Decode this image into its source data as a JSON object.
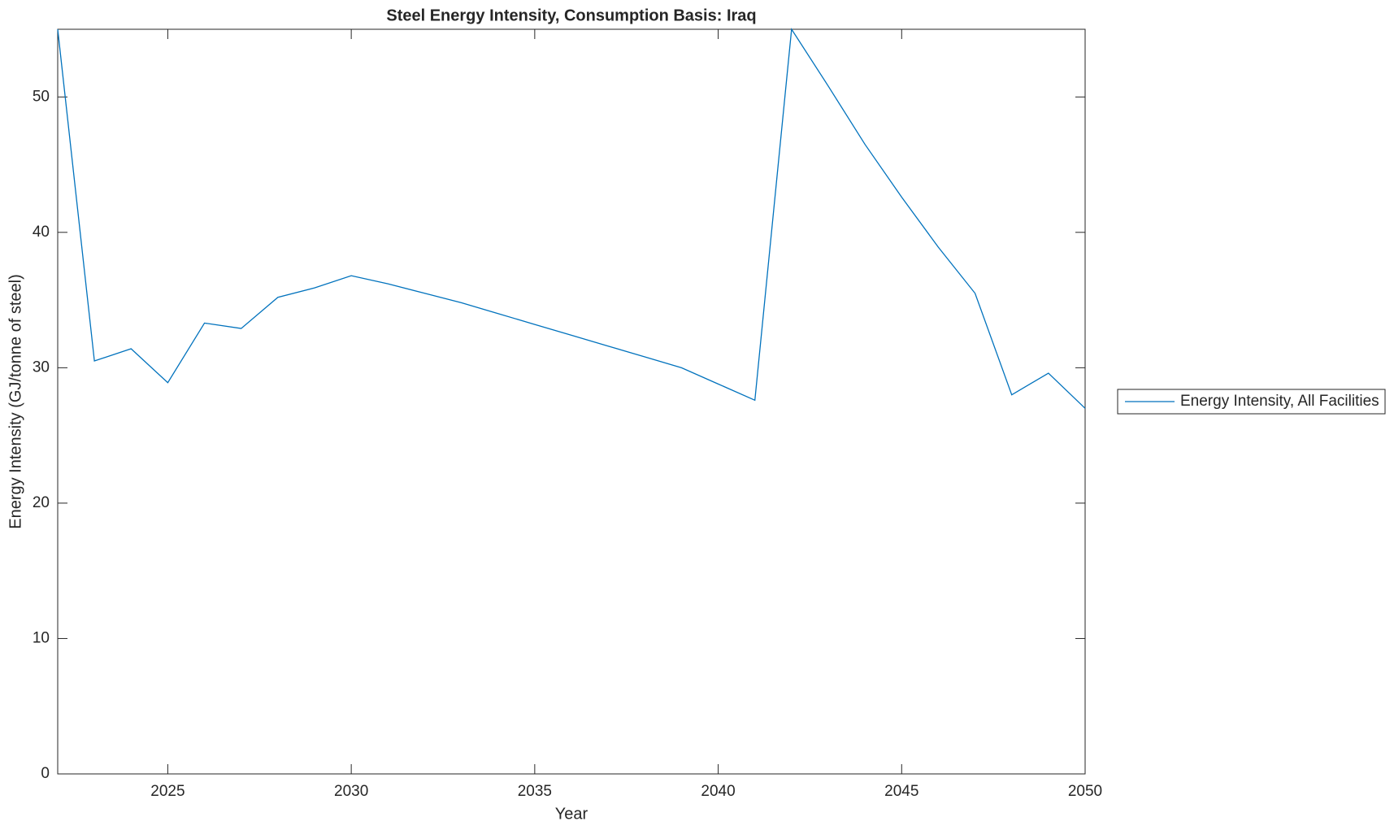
{
  "chart_data": {
    "type": "line",
    "title": "Steel Energy Intensity, Consumption Basis: Iraq",
    "xlabel": "Year",
    "ylabel": "Energy Intensity (GJ/tonne of steel)",
    "x": [
      2022,
      2023,
      2024,
      2025,
      2026,
      2027,
      2028,
      2029,
      2030,
      2031,
      2032,
      2033,
      2034,
      2035,
      2036,
      2037,
      2038,
      2039,
      2040,
      2041,
      2042,
      2043,
      2044,
      2045,
      2046,
      2047,
      2048,
      2049,
      2050
    ],
    "series": [
      {
        "name": "Energy Intensity, All Facilities",
        "color": "#0072bd",
        "values": [
          55,
          30.5,
          31.4,
          28.9,
          33.3,
          32.9,
          35.2,
          35.9,
          36.8,
          36.2,
          35.5,
          34.8,
          34.0,
          33.2,
          32.4,
          31.6,
          30.8,
          30.0,
          28.8,
          27.6,
          55,
          50.8,
          46.5,
          42.6,
          38.9,
          35.5,
          28.0,
          29.6,
          27.0
        ]
      }
    ],
    "xlim": [
      2022,
      2050
    ],
    "ylim": [
      0,
      55
    ],
    "xticks": [
      2025,
      2030,
      2035,
      2040,
      2045,
      2050
    ],
    "yticks": [
      0,
      10,
      20,
      30,
      40,
      50
    ],
    "legend": "outside-right"
  }
}
